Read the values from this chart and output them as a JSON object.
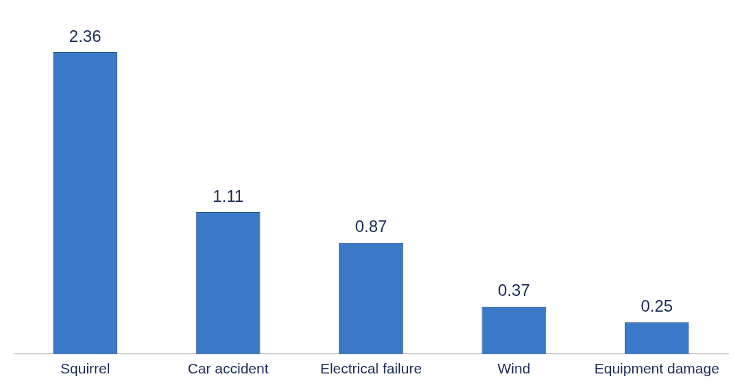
{
  "chart_data": {
    "type": "bar",
    "categories": [
      "Squirrel",
      "Car accident",
      "Electrical failure",
      "Wind",
      "Equipment damage"
    ],
    "values": [
      2.36,
      1.11,
      0.87,
      0.37,
      0.25
    ],
    "color": "#3a78c8",
    "data_labels": true,
    "grid": false
  }
}
